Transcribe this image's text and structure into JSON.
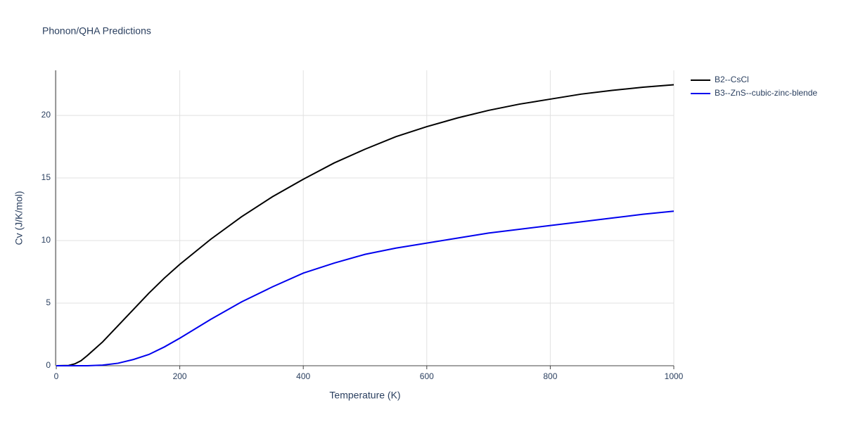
{
  "chart_data": {
    "type": "line",
    "title": "Phonon/QHA Predictions",
    "x_label": "Temperature (K)",
    "y_label": "Cv (J/K/mol)",
    "x": [
      0,
      20,
      30,
      40,
      50,
      75,
      100,
      125,
      150,
      175,
      200,
      250,
      300,
      350,
      400,
      450,
      500,
      550,
      600,
      650,
      700,
      750,
      800,
      850,
      900,
      950,
      1000
    ],
    "series": [
      {
        "name": "B2--CsCl",
        "color": "#000000",
        "values": [
          0,
          0.02,
          0.15,
          0.4,
          0.8,
          1.9,
          3.2,
          4.5,
          5.8,
          7.0,
          8.1,
          10.1,
          11.9,
          13.5,
          14.9,
          16.2,
          17.3,
          18.3,
          19.1,
          19.8,
          20.4,
          20.9,
          21.3,
          21.7,
          22.0,
          22.25,
          22.45
        ]
      },
      {
        "name": "B3--ZnS--cubic-zinc-blende",
        "color": "#0000ee",
        "values": [
          0,
          0,
          0,
          0,
          0,
          0.05,
          0.2,
          0.5,
          0.9,
          1.5,
          2.2,
          3.7,
          5.1,
          6.3,
          7.4,
          8.2,
          8.9,
          9.4,
          9.8,
          10.2,
          10.6,
          10.9,
          11.2,
          11.5,
          11.8,
          12.1,
          12.35
        ]
      }
    ],
    "xlim": [
      0,
      1000
    ],
    "xticks": [
      0,
      200,
      400,
      600,
      800,
      1000
    ],
    "ylim": [
      0,
      23.6
    ],
    "yticks": [
      0,
      5,
      10,
      15,
      20
    ],
    "grid": true,
    "legend": "right"
  }
}
